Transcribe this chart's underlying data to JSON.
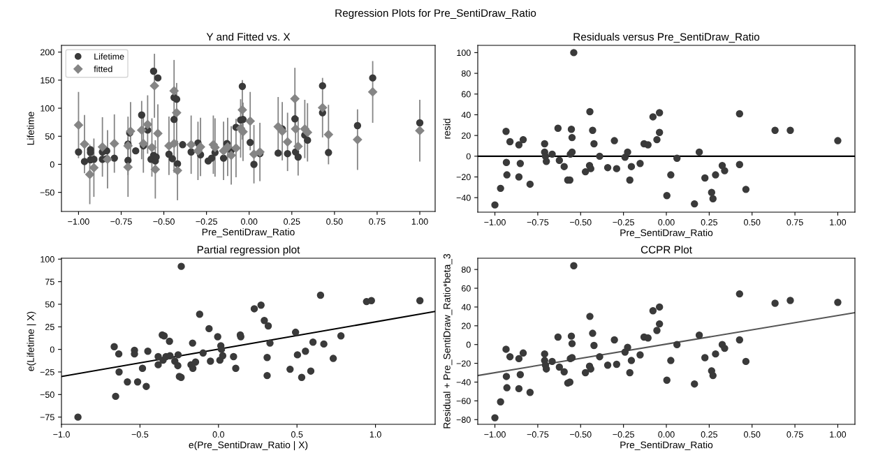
{
  "chart_data": [
    {
      "type": "scatter",
      "title": "Y and Fitted vs. X",
      "xlabel": "Pre_SentiDraw_Ratio",
      "ylabel": "Lifetime",
      "annotations": [
        "Regression Plots for Pre_SentiDraw_Ratio"
      ],
      "legend": "top left",
      "xlim": [
        -1.1,
        1.09
      ],
      "ylim": [
        -84,
        212
      ],
      "xticks": [
        {
          "value": -1.0,
          "label": "−1.00"
        },
        {
          "value": -0.75,
          "label": "−0.75"
        },
        {
          "value": -0.5,
          "label": "−0.50"
        },
        {
          "value": -0.25,
          "label": "−0.25"
        },
        {
          "value": 0,
          "label": "0.00"
        },
        {
          "value": 0.25,
          "label": "0.25"
        },
        {
          "value": 0.5,
          "label": "0.50"
        },
        {
          "value": 0.75,
          "label": "0.75"
        },
        {
          "value": 1.0,
          "label": "1.00"
        }
      ],
      "yticks": [
        {
          "value": -50,
          "label": "−50"
        },
        0,
        50,
        100,
        150,
        200
      ],
      "series": [
        {
          "name": "Lifetime",
          "color": "#3a3a3a",
          "marker": "circle",
          "x": [
            -1.0,
            -0.965,
            -0.93,
            -0.93,
            -0.93,
            -0.91,
            -0.86,
            -0.86,
            -0.835,
            -0.835,
            -0.79,
            -0.71,
            -0.71,
            -0.7,
            -0.665,
            -0.63,
            -0.62,
            -0.595,
            -0.575,
            -0.56,
            -0.535,
            -0.56,
            -0.55,
            -0.545,
            -0.47,
            -0.45,
            -0.44,
            -0.44,
            -0.425,
            -0.42,
            -0.39,
            -0.34,
            -0.3,
            -0.285,
            -0.24,
            -0.22,
            -0.2,
            -0.15,
            -0.13,
            -0.105,
            -0.077,
            -0.05,
            -0.036,
            -0.04,
            0.006,
            0.028,
            0.063,
            0.17,
            0.194,
            0.225,
            0.268,
            0.272,
            0.287,
            0.326,
            0.342,
            0.43,
            0.43,
            0.465,
            0.635,
            0.724,
            1.0
          ],
          "values": [
            22,
            5,
            26,
            21,
            8,
            9,
            9,
            22,
            24,
            10,
            11,
            7,
            36,
            56,
            24,
            88,
            33,
            61,
            9,
            166,
            154,
            16,
            6,
            13,
            18,
            10,
            80,
            119,
            116,
            1,
            35,
            22,
            38,
            17,
            6,
            11,
            21,
            11,
            37,
            25,
            66,
            79,
            80,
            139,
            39,
            0,
            19,
            20,
            63,
            19,
            81,
            22,
            13,
            52,
            43,
            92,
            140,
            21,
            69,
            154,
            74
          ]
        },
        {
          "name": "fitted",
          "color": "#858585",
          "marker": "diamond",
          "x": [
            -1.0,
            -0.965,
            -0.934,
            -0.91,
            -0.86,
            -0.83,
            -0.79,
            -0.71,
            -0.71,
            -0.695,
            -0.63,
            -0.62,
            -0.595,
            -0.57,
            -0.555,
            -0.55,
            -0.535,
            -0.47,
            -0.44,
            -0.44,
            -0.425,
            -0.42,
            -0.34,
            -0.3,
            -0.285,
            -0.21,
            -0.2,
            -0.15,
            -0.126,
            -0.105,
            -0.077,
            -0.05,
            -0.04,
            -0.036,
            0.006,
            0.028,
            0.063,
            0.17,
            0.194,
            0.225,
            0.268,
            0.272,
            0.287,
            0.326,
            0.342,
            0.43,
            0.465,
            0.635,
            0.724,
            1.0
          ],
          "values": [
            70,
            36,
            -18,
            -6,
            31,
            9,
            37,
            -5,
            33,
            59,
            61,
            37,
            71,
            30,
            140,
            -9,
            55,
            33,
            131,
            37,
            92,
            -11,
            35,
            24,
            31,
            35,
            30,
            24,
            31,
            16,
            29,
            64,
            97,
            58,
            77,
            18,
            22,
            67,
            59,
            40,
            117,
            63,
            32,
            63,
            57,
            101,
            53,
            44,
            129,
            60
          ],
          "errors": [
            59,
            52,
            53,
            52,
            53,
            52,
            52,
            53,
            52,
            52,
            52,
            52,
            52,
            52,
            57,
            52,
            52,
            52,
            55,
            52,
            53,
            53,
            52,
            52,
            52,
            52,
            52,
            52,
            52,
            52,
            52,
            52,
            53,
            52,
            52,
            52,
            52,
            53,
            52,
            52,
            55,
            52,
            52,
            52,
            52,
            53,
            53,
            54,
            55,
            55
          ]
        }
      ]
    },
    {
      "type": "scatter",
      "title": "Residuals versus Pre_SentiDraw_Ratio",
      "xlabel": "Pre_SentiDraw_Ratio",
      "ylabel": "resid",
      "xlim": [
        -1.1,
        1.1
      ],
      "ylim": [
        -54,
        107
      ],
      "xticks": [
        {
          "value": -1.0,
          "label": "−1.00"
        },
        {
          "value": -0.75,
          "label": "−0.75"
        },
        {
          "value": -0.5,
          "label": "−0.50"
        },
        {
          "value": -0.25,
          "label": "−0.25"
        },
        {
          "value": 0,
          "label": "0.00"
        },
        {
          "value": 0.25,
          "label": "0.25"
        },
        {
          "value": 0.5,
          "label": "0.50"
        },
        {
          "value": 0.75,
          "label": "0.75"
        },
        {
          "value": 1.0,
          "label": "1.00"
        }
      ],
      "yticks": [
        {
          "value": -40,
          "label": "−40"
        },
        {
          "value": -20,
          "label": "−20"
        },
        0,
        20,
        40,
        60,
        80,
        100
      ],
      "ref_lines": [
        {
          "axis": "y",
          "value": 0,
          "label": null,
          "color": "#000000"
        }
      ],
      "series": [
        {
          "color": "#3a3a3a",
          "marker": "circle",
          "x": [
            -1.0,
            -0.967,
            -0.935,
            -0.933,
            -0.93,
            -0.912,
            -0.86,
            -0.852,
            -0.86,
            -0.835,
            -0.795,
            -0.71,
            -0.71,
            -0.705,
            -0.7,
            -0.666,
            -0.632,
            -0.624,
            -0.596,
            -0.575,
            -0.563,
            -0.56,
            -0.55,
            -0.554,
            -0.55,
            -0.54,
            -0.472,
            -0.446,
            -0.448,
            -0.441,
            -0.43,
            -0.422,
            -0.389,
            -0.342,
            -0.303,
            -0.29,
            -0.241,
            -0.226,
            -0.213,
            -0.204,
            -0.153,
            -0.13,
            -0.107,
            -0.078,
            -0.055,
            -0.04,
            -0.04,
            0.003,
            0.026,
            0.062,
            0.164,
            0.192,
            0.225,
            0.264,
            0.272,
            0.287,
            0.326,
            0.34,
            0.427,
            0.427,
            0.464,
            0.634,
            0.723,
            1.0
          ],
          "values": [
            -47,
            -31,
            24,
            -6,
            -18,
            14,
            11,
            -7,
            -20,
            16,
            -27,
            12,
            4,
            0,
            -5,
            2,
            27,
            -4,
            -10,
            -23,
            -23,
            2,
            4,
            26,
            18,
            100,
            -15,
            43,
            -9,
            -12,
            25,
            12,
            0,
            -11,
            15,
            -12,
            -1,
            4,
            -23,
            -10,
            -7,
            12,
            11,
            38,
            16,
            42,
            23,
            -38,
            -18,
            -2,
            -46,
            4,
            -21,
            -35,
            -41,
            -18,
            -9,
            -14,
            41,
            -8,
            -32,
            25,
            25,
            15
          ]
        }
      ]
    },
    {
      "type": "scatter",
      "title": "Partial regression plot",
      "xlabel": "e(Pre_SentiDraw_Ratio | X)",
      "ylabel": "e(Lifetime | X)",
      "xlim": [
        -1.0,
        1.38
      ],
      "ylim": [
        -83,
        101
      ],
      "xticks": [
        {
          "value": -1.0,
          "label": "−1.0"
        },
        {
          "value": -0.5,
          "label": "−0.5"
        },
        {
          "value": 0,
          "label": "0.0"
        },
        {
          "value": 0.5,
          "label": "0.5"
        },
        {
          "value": 1.0,
          "label": "1.0"
        }
      ],
      "yticks": [
        {
          "value": -75,
          "label": "−75"
        },
        {
          "value": -50,
          "label": "−50"
        },
        {
          "value": -25,
          "label": "−25"
        },
        0,
        25,
        50,
        75,
        100
      ],
      "series": [
        {
          "color": "#3a3a3a",
          "marker": "circle",
          "x": [
            -0.895,
            -0.664,
            -0.655,
            -0.635,
            -0.633,
            -0.58,
            -0.535,
            -0.535,
            -0.515,
            -0.484,
            -0.46,
            -0.45,
            -0.384,
            -0.384,
            -0.358,
            -0.346,
            -0.353,
            -0.334,
            -0.312,
            -0.309,
            -0.278,
            -0.259,
            -0.257,
            -0.249,
            -0.238,
            -0.237,
            -0.175,
            -0.163,
            -0.165,
            -0.146,
            -0.12,
            -0.098,
            -0.06,
            -0.051,
            -0.005,
            0.009,
            0.015,
            0.019,
            0.027,
            0.096,
            0.11,
            0.139,
            0.142,
            0.228,
            0.271,
            0.292,
            0.31,
            0.31,
            0.317,
            0.328,
            0.456,
            0.491,
            0.503,
            0.53,
            0.554,
            0.588,
            0.602,
            0.65,
            0.671,
            0.731,
            0.78,
            0.943,
            0.974,
            1.283
          ],
          "values": [
            -75,
            3,
            -52,
            -5,
            -25,
            -36,
            -1,
            -5,
            -36,
            -21,
            -41,
            -2,
            -8,
            -17,
            16,
            15,
            -12,
            -8,
            9,
            -7,
            -13,
            -18,
            -6,
            -30,
            -31,
            92,
            -17,
            -21,
            7,
            -14,
            39,
            -4,
            23,
            -13,
            14,
            -12,
            4,
            0,
            -7,
            -8,
            -21,
            16,
            14,
            45,
            49,
            32,
            -9,
            -29,
            26,
            7,
            -22,
            19,
            -6,
            -31,
            -2,
            -24,
            8,
            60,
            6,
            -10,
            15,
            53,
            54,
            54
          ]
        },
        {
          "type": "line",
          "color": "#000000",
          "x": [
            -1.0,
            1.38
          ],
          "values": [
            -30,
            42
          ]
        }
      ]
    },
    {
      "type": "scatter",
      "title": "CCPR Plot",
      "xlabel": "Pre_SentiDraw_Ratio",
      "ylabel": "Residual + Pre_SentiDraw_Ratio*beta_3",
      "xlim": [
        -1.1,
        1.1
      ],
      "ylim": [
        -85,
        92
      ],
      "xticks": [
        {
          "value": -1.0,
          "label": "−1.00"
        },
        {
          "value": -0.75,
          "label": "−0.75"
        },
        {
          "value": -0.5,
          "label": "−0.50"
        },
        {
          "value": -0.25,
          "label": "−0.25"
        },
        {
          "value": 0,
          "label": "0.00"
        },
        {
          "value": 0.25,
          "label": "0.25"
        },
        {
          "value": 0.5,
          "label": "0.50"
        },
        {
          "value": 0.75,
          "label": "0.75"
        },
        {
          "value": 1.0,
          "label": "1.00"
        }
      ],
      "yticks": [
        {
          "value": -80,
          "label": "−80"
        },
        {
          "value": -60,
          "label": "−60"
        },
        {
          "value": -40,
          "label": "−40"
        },
        {
          "value": -20,
          "label": "−20"
        },
        0,
        20,
        40,
        60,
        80
      ],
      "series": [
        {
          "color": "#3a3a3a",
          "marker": "circle",
          "x": [
            -1.0,
            -0.967,
            -0.935,
            -0.933,
            -0.93,
            -0.912,
            -0.86,
            -0.852,
            -0.86,
            -0.835,
            -0.795,
            -0.71,
            -0.71,
            -0.705,
            -0.7,
            -0.666,
            -0.632,
            -0.624,
            -0.596,
            -0.575,
            -0.563,
            -0.56,
            -0.55,
            -0.554,
            -0.55,
            -0.54,
            -0.472,
            -0.446,
            -0.448,
            -0.441,
            -0.43,
            -0.422,
            -0.389,
            -0.342,
            -0.303,
            -0.29,
            -0.241,
            -0.226,
            -0.213,
            -0.204,
            -0.153,
            -0.13,
            -0.107,
            -0.078,
            -0.055,
            -0.04,
            -0.04,
            0.003,
            0.026,
            0.062,
            0.164,
            0.192,
            0.225,
            0.264,
            0.272,
            0.287,
            0.326,
            0.34,
            0.427,
            0.427,
            0.464,
            0.634,
            0.723,
            1.0
          ],
          "values": [
            -78,
            -61,
            -5,
            -34,
            -46,
            -13,
            -15,
            -32,
            -47,
            -9,
            -51,
            -10,
            -17,
            -22,
            -26,
            -18,
            8,
            -24,
            -29,
            -41,
            -40,
            -15,
            -14,
            9,
            1,
            84,
            -30,
            30,
            -23,
            -26,
            12,
            -1,
            -13,
            -22,
            5,
            -21,
            -8,
            -3,
            -30,
            -17,
            -11,
            8,
            7,
            36,
            15,
            40,
            22,
            -38,
            -17,
            0,
            -42,
            10,
            -14,
            -28,
            -33,
            -10,
            0,
            -4,
            54,
            5,
            -18,
            44,
            47,
            45
          ]
        },
        {
          "type": "line",
          "color": "#555555",
          "x": [
            -1.1,
            1.1
          ],
          "values": [
            -33,
            34
          ]
        }
      ]
    }
  ]
}
